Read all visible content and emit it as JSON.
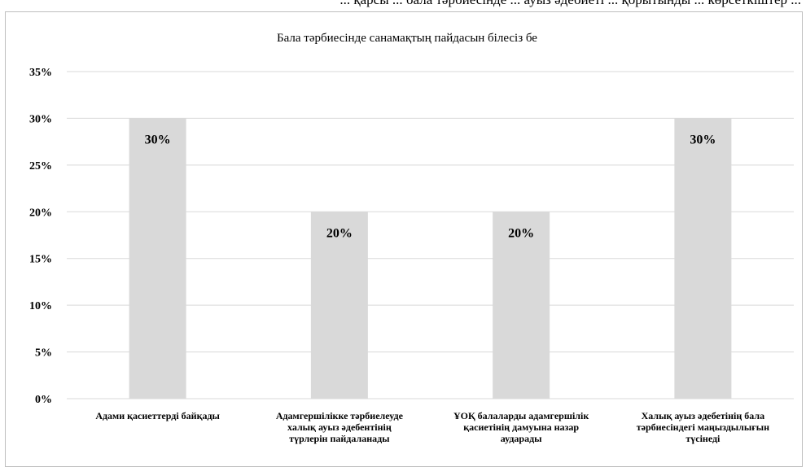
{
  "page": {
    "top_text": "... қарсы ... бала тәрбиесінде ... ауыз әдебиеті ... қорытынды ... көрсеткіштер ..."
  },
  "chart_data": {
    "type": "bar",
    "title": "Бала тәрбиесінде санамақтың пайдасын білесіз бе",
    "categories": [
      [
        "Адами қасиеттерді байқады"
      ],
      [
        "Адамгершілікке тәрбиелеуде",
        "халық ауыз әдебентінің",
        "түрлерін пайдаланады"
      ],
      [
        "ҰОҚ балаларды адамгершілік",
        "қасиетінің дамуына назар",
        "аударады"
      ],
      [
        "Халық ауыз әдебетінің бала",
        "тәрбиесіндегі маңыздылығын",
        "түсінеді"
      ]
    ],
    "values": [
      30,
      20,
      20,
      30
    ],
    "data_labels": [
      "30%",
      "20%",
      "20%",
      "30%"
    ],
    "yticks": [
      "0%",
      "5%",
      "10%",
      "15%",
      "20%",
      "25%",
      "30%",
      "35%"
    ],
    "ylim": [
      0,
      35
    ],
    "grid": true,
    "legend": "none",
    "colors": {
      "bar": "#d9d9d9",
      "grid": "#d9d9d9",
      "text": "#000000"
    }
  }
}
